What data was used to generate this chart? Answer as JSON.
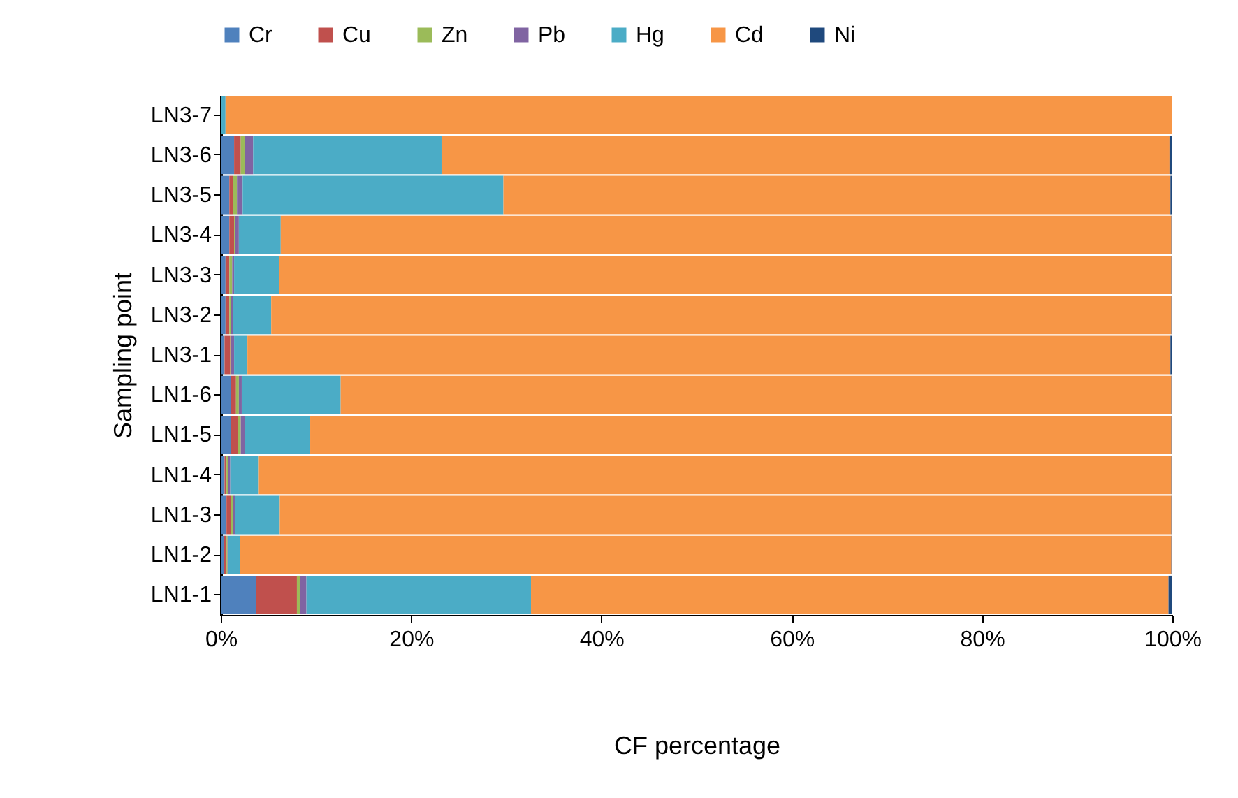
{
  "chart_data": {
    "type": "bar",
    "orientation": "horizontal",
    "stacked": true,
    "xlabel": "CF percentage",
    "ylabel": "Sampling point",
    "legend": "top",
    "grid": false,
    "categories": [
      "LN3-7",
      "LN3-6",
      "LN3-5",
      "LN3-4",
      "LN3-3",
      "LN3-2",
      "LN3-1",
      "LN1-6",
      "LN1-5",
      "LN1-4",
      "LN1-3",
      "LN1-2",
      "LN1-1"
    ],
    "xlim": [
      0,
      100
    ],
    "xticks": [
      {
        "value": 0,
        "label": "0%"
      },
      {
        "value": 20,
        "label": "20%"
      },
      {
        "value": 40,
        "label": "40%"
      },
      {
        "value": 60,
        "label": "60%"
      },
      {
        "value": 80,
        "label": "80%"
      },
      {
        "value": 100,
        "label": "100%"
      }
    ],
    "series": [
      {
        "name": "Cr",
        "color": "#4f81bd",
        "values": [
          0,
          1.4,
          0.9,
          0.9,
          0.5,
          0.5,
          0.4,
          1.1,
          1.1,
          0.4,
          0.6,
          0.3,
          3.7
        ]
      },
      {
        "name": "Cu",
        "color": "#c0504d",
        "values": [
          0,
          0.7,
          0.4,
          0.5,
          0.4,
          0.4,
          0.6,
          0.5,
          0.7,
          0.2,
          0.5,
          0.3,
          4.3
        ]
      },
      {
        "name": "Zn",
        "color": "#9bbb59",
        "values": [
          0,
          0.4,
          0.4,
          0.1,
          0.3,
          0.2,
          0.1,
          0.3,
          0.3,
          0.2,
          0.2,
          0.1,
          0.3
        ]
      },
      {
        "name": "Pb",
        "color": "#8064a2",
        "values": [
          0,
          0.9,
          0.6,
          0.4,
          0.2,
          0.2,
          0.3,
          0.3,
          0.4,
          0.2,
          0.2,
          0.1,
          0.7
        ]
      },
      {
        "name": "Hg",
        "color": "#4bacc6",
        "values": [
          0.5,
          19.8,
          27.4,
          4.4,
          4.7,
          4.0,
          1.4,
          10.4,
          6.9,
          3.0,
          4.7,
          1.2,
          23.6
        ]
      },
      {
        "name": "Cd",
        "color": "#f79646",
        "values": [
          99.5,
          76.5,
          70.1,
          93.6,
          93.8,
          94.6,
          97.0,
          87.3,
          90.5,
          95.9,
          93.7,
          97.9,
          67.0
        ]
      },
      {
        "name": "Ni",
        "color": "#1f497d",
        "values": [
          0,
          0.3,
          0.2,
          0.1,
          0.1,
          0.1,
          0.2,
          0.1,
          0.1,
          0.1,
          0.1,
          0.1,
          0.4
        ]
      }
    ]
  }
}
